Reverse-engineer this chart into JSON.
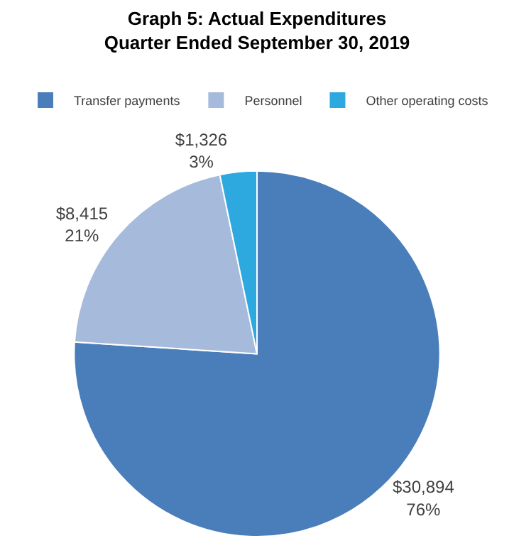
{
  "chart_data": {
    "type": "pie",
    "title": "Graph 5: Actual Expenditures\nQuarter Ended September 30, 2019",
    "categories": [
      "Transfer payments",
      "Personnel",
      "Other operating costs"
    ],
    "values": [
      30894,
      8415,
      1326
    ],
    "colors": [
      "#4a7ebb",
      "#a6bbdc",
      "#2ea9df"
    ],
    "value_labels": [
      "$30,894\n76%",
      "$8,415\n21%",
      "$1,326\n3%"
    ],
    "legend": "top"
  }
}
